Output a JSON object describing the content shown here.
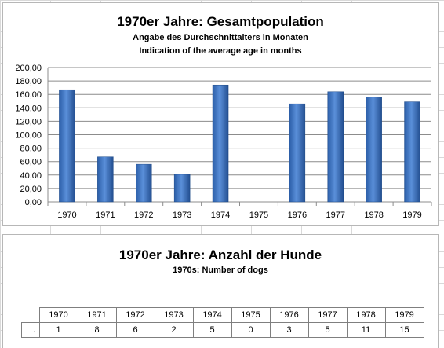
{
  "chart_data": [
    {
      "type": "bar",
      "title": "1970er Jahre: Gesamtpopulation",
      "subtitle": [
        "Angabe des Durchschnittalters in Monaten",
        "Indication of the average age in months"
      ],
      "categories": [
        "1970",
        "1971",
        "1972",
        "1973",
        "1974",
        "1975",
        "1976",
        "1977",
        "1978",
        "1979"
      ],
      "values": [
        167,
        67,
        56,
        41,
        174,
        0,
        146,
        164,
        156,
        149
      ],
      "ylim": [
        0,
        200
      ],
      "yticks": [
        "0,00",
        "20,00",
        "40,00",
        "60,00",
        "80,00",
        "100,00",
        "120,00",
        "140,00",
        "160,00",
        "180,00",
        "200,00"
      ],
      "grid": true,
      "bar_color": "#3b70bf"
    },
    {
      "type": "table",
      "title": "1970er Jahre: Anzahl der Hunde",
      "subtitle": "1970s: Number of dogs",
      "row_label": ".",
      "columns": [
        "1970",
        "1971",
        "1972",
        "1973",
        "1974",
        "1975",
        "1976",
        "1977",
        "1978",
        "1979"
      ],
      "values": [
        "1",
        "8",
        "6",
        "2",
        "5",
        "0",
        "3",
        "5",
        "11",
        "15"
      ]
    }
  ]
}
